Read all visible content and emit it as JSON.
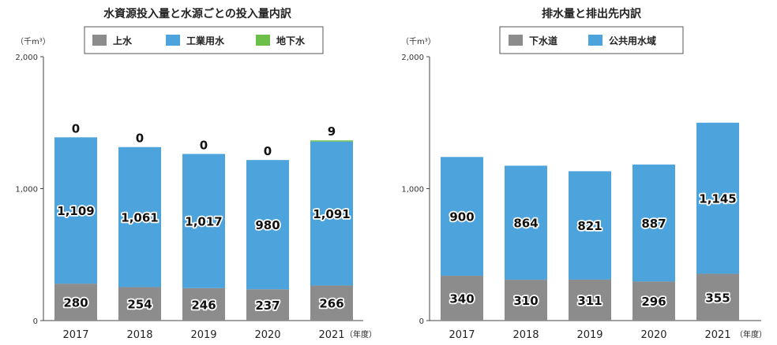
{
  "chart_data": [
    {
      "type": "bar",
      "stacked": true,
      "title": "水資源投入量と水源ごとの投入量内訳",
      "unit": "（千m³）",
      "categories": [
        "2017",
        "2018",
        "2019",
        "2020",
        "2021"
      ],
      "x_suffix": "（年度）",
      "ylim": [
        0,
        2000
      ],
      "yticks": [
        "0",
        "1,000",
        "2,000"
      ],
      "ytick_values": [
        0,
        1000,
        2000
      ],
      "legend_position": "top",
      "series": [
        {
          "name": "上水",
          "color": "#8c8c8c",
          "values": [
            280,
            254,
            246,
            237,
            266
          ],
          "labels": [
            "280",
            "254",
            "246",
            "237",
            "266"
          ]
        },
        {
          "name": "工業用水",
          "color": "#4da3db",
          "values": [
            1109,
            1061,
            1017,
            980,
            1091
          ],
          "labels": [
            "1,109",
            "1,061",
            "1,017",
            "980",
            "1,091"
          ]
        },
        {
          "name": "地下水",
          "color": "#6cc04a",
          "values": [
            0,
            0,
            0,
            0,
            9
          ],
          "labels": [
            "0",
            "0",
            "0",
            "0",
            "9"
          ]
        }
      ]
    },
    {
      "type": "bar",
      "stacked": true,
      "title": "排水量と排出先内訳",
      "unit": "（千m³）",
      "categories": [
        "2017",
        "2018",
        "2019",
        "2020",
        "2021"
      ],
      "x_suffix": "（年度）",
      "ylim": [
        0,
        2000
      ],
      "yticks": [
        "0",
        "1,000",
        "2,000"
      ],
      "ytick_values": [
        0,
        1000,
        2000
      ],
      "legend_position": "top",
      "series": [
        {
          "name": "下水道",
          "color": "#8c8c8c",
          "values": [
            340,
            310,
            311,
            296,
            355
          ],
          "labels": [
            "340",
            "310",
            "311",
            "296",
            "355"
          ]
        },
        {
          "name": "公共用水域",
          "color": "#4da3db",
          "values": [
            900,
            864,
            821,
            887,
            1145
          ],
          "labels": [
            "900",
            "864",
            "821",
            "887",
            "1,145"
          ]
        }
      ]
    }
  ]
}
